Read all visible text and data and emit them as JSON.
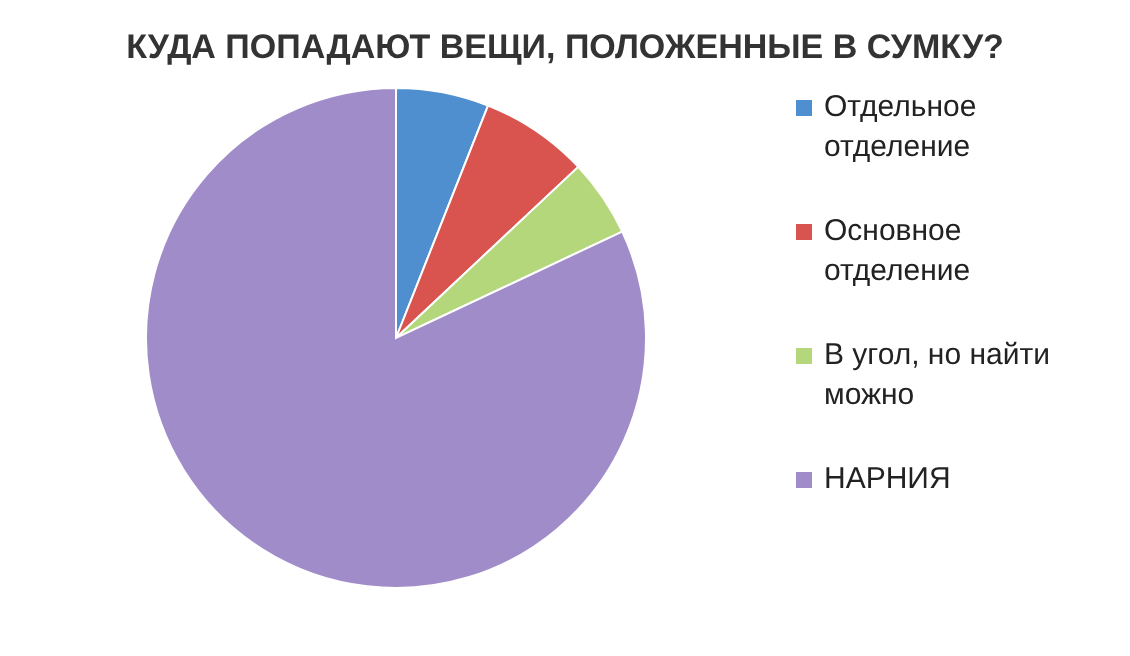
{
  "chart_data": {
    "type": "pie",
    "title": "КУДА ПОПАДАЮТ ВЕЩИ, ПОЛОЖЕННЫЕ В СУМКУ?",
    "categories": [
      "Отдельное отделение",
      "Основное отделение",
      "В угол, но найти можно",
      "НАРНИЯ"
    ],
    "values": [
      6,
      7,
      5,
      82
    ],
    "colors": [
      "#4f8fcf",
      "#d9534f",
      "#b3d77a",
      "#a08cc8"
    ],
    "legend": "right"
  }
}
